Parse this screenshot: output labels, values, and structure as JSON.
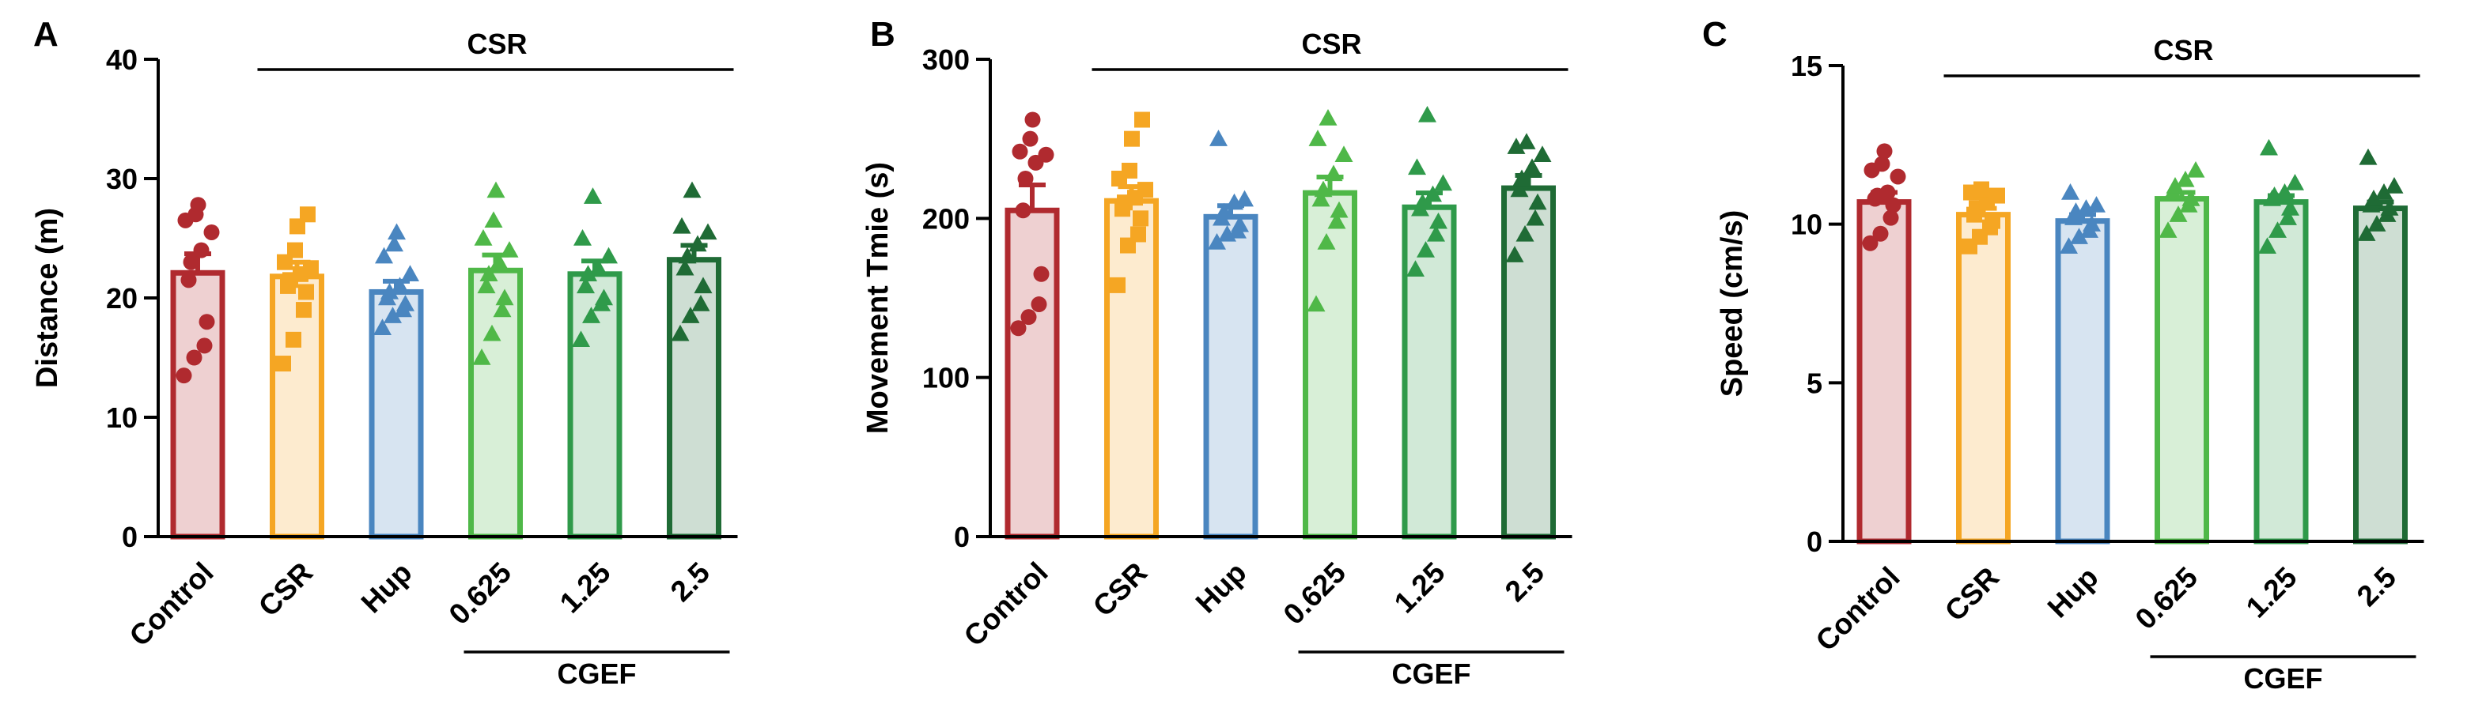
{
  "colors": {
    "Control": "#b02a2f",
    "CSR": "#f5a623",
    "Hup": "#4a86c0",
    "0.625": "#4fb848",
    "1.25": "#2f9a4a",
    "2.5": "#1f6b35"
  },
  "chart_data": [
    {
      "panel": "A",
      "type": "bar",
      "title": "",
      "ylabel": "Distance (m)",
      "xlabel": "",
      "ylim": [
        0,
        40
      ],
      "yticks": [
        0,
        10,
        20,
        30,
        40
      ],
      "categories": [
        "Control",
        "CSR",
        "Hup",
        "0.625",
        "1.25",
        "2.5"
      ],
      "values": [
        22.1,
        21.8,
        20.5,
        22.3,
        22.0,
        23.2
      ],
      "errors": [
        1.6,
        1.2,
        0.9,
        1.3,
        1.1,
        1.2
      ],
      "markers": [
        "circle",
        "square",
        "triangle",
        "triangle",
        "triangle",
        "triangle"
      ],
      "points": [
        [
          13.5,
          15.0,
          16.0,
          18.0,
          21.5,
          23.0,
          24.0,
          25.5,
          26.5,
          27.0,
          27.8
        ],
        [
          14.5,
          16.5,
          19.0,
          20.5,
          21.0,
          21.5,
          22.0,
          22.5,
          23.0,
          24.0,
          26.0,
          27.0
        ],
        [
          17.5,
          18.5,
          19.0,
          19.5,
          20.0,
          20.5,
          21.0,
          22.0,
          23.5,
          24.5,
          25.5
        ],
        [
          15.0,
          17.0,
          19.0,
          20.0,
          21.0,
          22.0,
          23.0,
          24.0,
          25.0,
          26.5,
          29.0
        ],
        [
          16.5,
          18.5,
          19.5,
          20.0,
          21.0,
          22.0,
          22.5,
          23.5,
          25.0,
          28.5
        ],
        [
          17.0,
          18.5,
          19.5,
          21.0,
          22.5,
          23.5,
          24.5,
          25.5,
          26.0,
          29.0
        ]
      ],
      "bracket_top_label": "CSR",
      "bracket_bottom_label": "CGEF"
    },
    {
      "panel": "B",
      "type": "bar",
      "title": "",
      "ylabel": "Movement Tmie (s)",
      "xlabel": "",
      "ylim": [
        0,
        300
      ],
      "yticks": [
        0,
        100,
        200,
        300
      ],
      "categories": [
        "Control",
        "CSR",
        "Hup",
        "0.625",
        "1.25",
        "2.5"
      ],
      "values": [
        205,
        211,
        201,
        216,
        207,
        219
      ],
      "errors": [
        16,
        9,
        7,
        10,
        9,
        8
      ],
      "markers": [
        "circle",
        "square",
        "triangle",
        "triangle",
        "triangle",
        "triangle"
      ],
      "points": [
        [
          131,
          138,
          146,
          165,
          205,
          225,
          235,
          240,
          242,
          250,
          262
        ],
        [
          158,
          183,
          190,
          200,
          206,
          210,
          213,
          218,
          225,
          230,
          250,
          262
        ],
        [
          185,
          190,
          192,
          196,
          200,
          204,
          210,
          212,
          250
        ],
        [
          146,
          185,
          198,
          205,
          212,
          218,
          228,
          240,
          250,
          263
        ],
        [
          168,
          180,
          190,
          198,
          206,
          210,
          215,
          222,
          232,
          265
        ],
        [
          177,
          190,
          200,
          210,
          218,
          225,
          232,
          240,
          245,
          248
        ]
      ],
      "bracket_top_label": "CSR",
      "bracket_bottom_label": "CGEF"
    },
    {
      "panel": "C",
      "type": "bar",
      "title": "",
      "ylabel": "Speed (cm/s)",
      "xlabel": "",
      "ylim": [
        0,
        15
      ],
      "yticks": [
        0,
        5,
        10,
        15
      ],
      "categories": [
        "Control",
        "CSR",
        "Hup",
        "0.625",
        "1.25",
        "2.5"
      ],
      "values": [
        10.7,
        10.3,
        10.1,
        10.8,
        10.7,
        10.5
      ],
      "errors": [
        0.3,
        0.2,
        0.2,
        0.2,
        0.2,
        0.2
      ],
      "markers": [
        "circle",
        "square",
        "triangle",
        "triangle",
        "triangle",
        "triangle"
      ],
      "points": [
        [
          9.4,
          9.7,
          10.2,
          10.6,
          10.8,
          10.9,
          11.0,
          11.5,
          11.7,
          11.9,
          12.3
        ],
        [
          9.3,
          9.6,
          9.9,
          10.1,
          10.3,
          10.5,
          10.7,
          10.9,
          11.0,
          11.1
        ],
        [
          9.3,
          9.6,
          9.8,
          10.0,
          10.2,
          10.4,
          10.5,
          10.6,
          11.0
        ],
        [
          9.8,
          10.3,
          10.6,
          10.8,
          11.0,
          11.2,
          11.4,
          11.7
        ],
        [
          9.3,
          9.8,
          10.2,
          10.5,
          10.8,
          10.9,
          11.0,
          11.3,
          12.4
        ],
        [
          9.7,
          10.0,
          10.3,
          10.5,
          10.6,
          10.8,
          11.0,
          11.2,
          12.1
        ]
      ],
      "bracket_top_label": "CSR",
      "bracket_bottom_label": "CGEF"
    }
  ]
}
